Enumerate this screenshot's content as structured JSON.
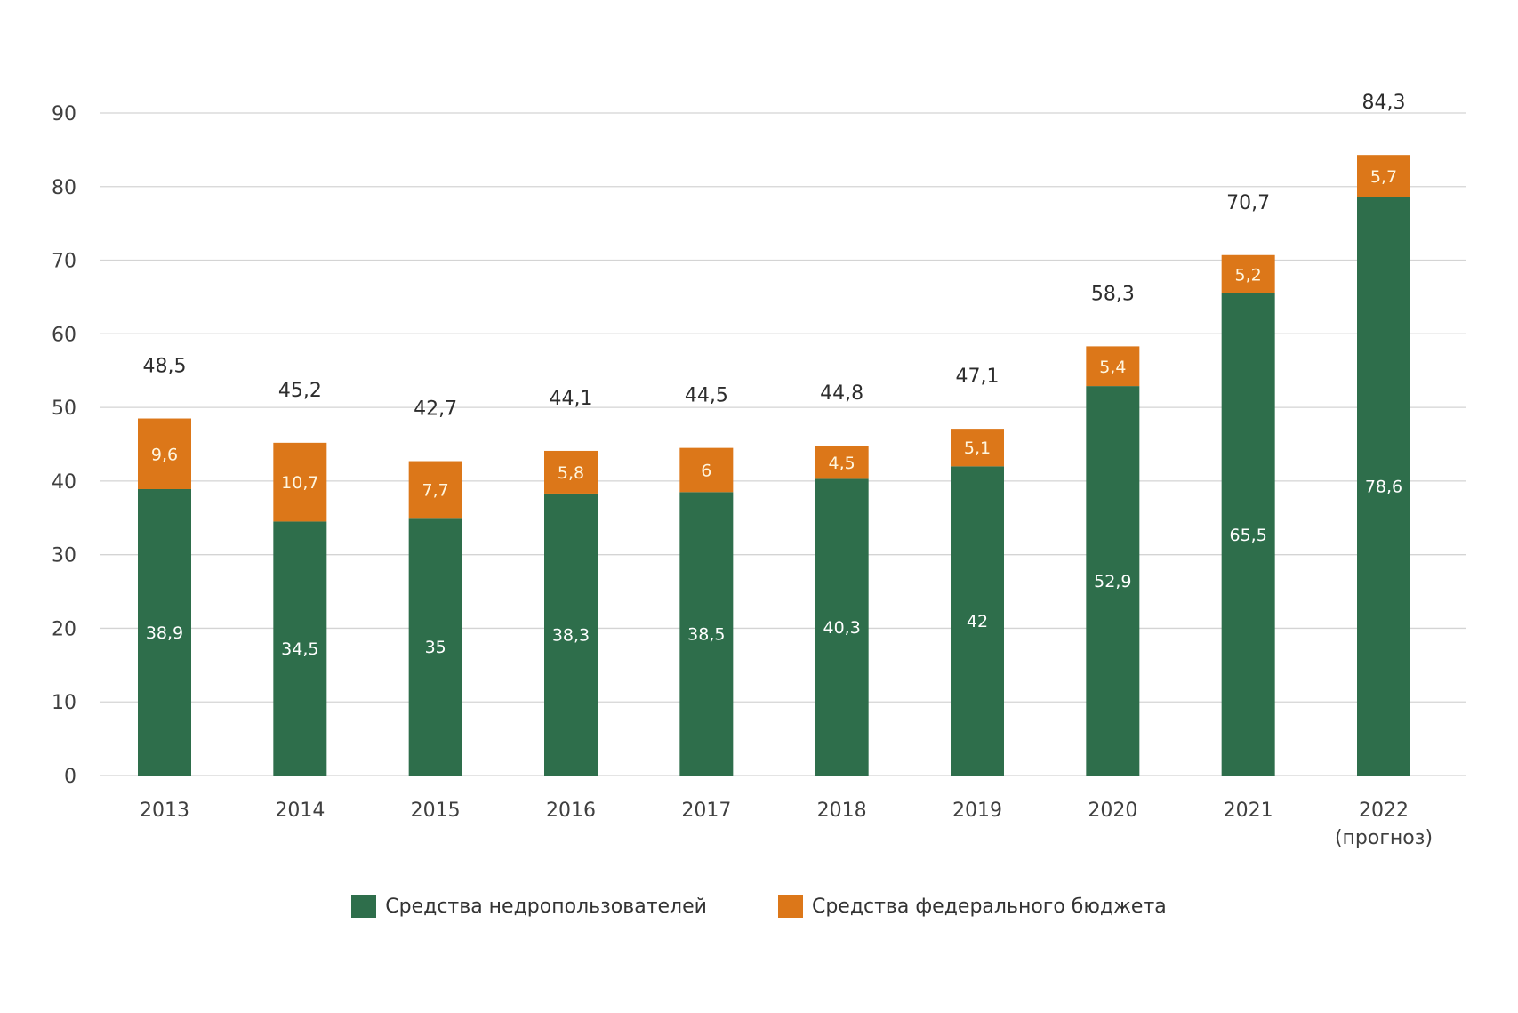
{
  "chart_data": {
    "type": "bar",
    "stacked": true,
    "title": "",
    "xlabel": "",
    "ylabel": "",
    "ylim": [
      0,
      90
    ],
    "yticks": [
      0,
      10,
      20,
      30,
      40,
      50,
      60,
      70,
      80,
      90
    ],
    "grid": true,
    "legend_position": "bottom-center",
    "decimal_separator": ",",
    "categories": [
      "2013",
      "2014",
      "2015",
      "2016",
      "2017",
      "2018",
      "2019",
      "2020",
      "2021",
      "2022\n(прогноз)"
    ],
    "category_lines": [
      [
        "2013"
      ],
      [
        "2014"
      ],
      [
        "2015"
      ],
      [
        "2016"
      ],
      [
        "2017"
      ],
      [
        "2018"
      ],
      [
        "2019"
      ],
      [
        "2020"
      ],
      [
        "2021"
      ],
      [
        "2022",
        "(прогноз)"
      ]
    ],
    "series": [
      {
        "name": "Средства недропользователей",
        "color": "#2e6e4b",
        "values": [
          38.9,
          34.5,
          35,
          38.3,
          38.5,
          40.3,
          42,
          52.9,
          65.5,
          78.6
        ],
        "labels": [
          "38,9",
          "34,5",
          "35",
          "38,3",
          "38,5",
          "40,3",
          "42",
          "52,9",
          "65,5",
          "78,6"
        ]
      },
      {
        "name": "Средства федерального бюджета",
        "color": "#dc7719",
        "values": [
          9.6,
          10.7,
          7.7,
          5.8,
          6,
          4.5,
          5.1,
          5.4,
          5.2,
          5.7
        ],
        "labels": [
          "9,6",
          "10,7",
          "7,7",
          "5,8",
          "6",
          "4,5",
          "5,1",
          "5,4",
          "5,2",
          "5,7"
        ]
      }
    ],
    "totals": [
      48.5,
      45.2,
      42.7,
      44.1,
      44.5,
      44.8,
      47.1,
      58.3,
      70.7,
      84.3
    ],
    "total_labels": [
      "48,5",
      "45,2",
      "42,7",
      "44,1",
      "44,5",
      "44,8",
      "47,1",
      "58,3",
      "70,7",
      "84,3"
    ]
  },
  "legend": {
    "items": [
      {
        "label": "Средства недропользователей",
        "color": "#2e6e4b"
      },
      {
        "label": "Средства федерального бюджета",
        "color": "#dc7719"
      }
    ]
  }
}
